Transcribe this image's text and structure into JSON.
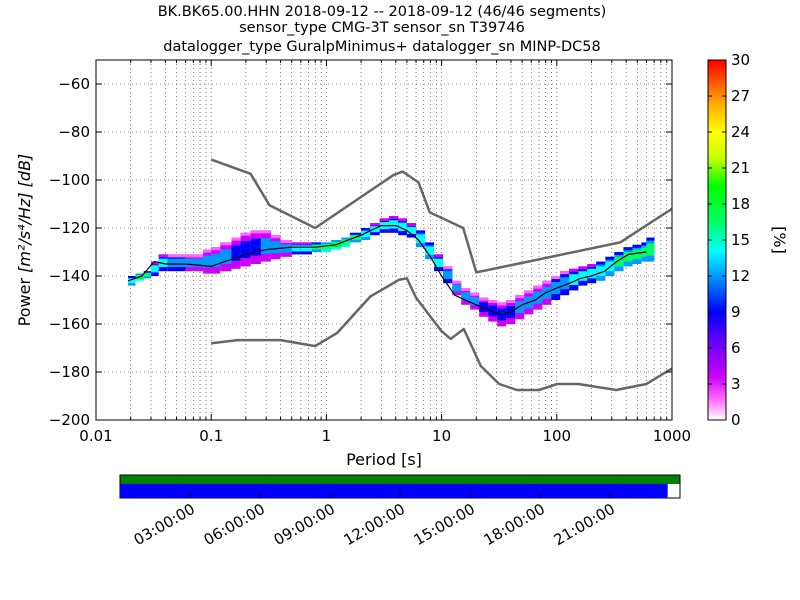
{
  "chart_data": {
    "type": "heatmap",
    "title_lines": [
      "BK.BK65.00.HHN   2018-09-12 -- 2018-09-12  (46/46 segments)",
      "sensor_type CMG-3T sensor_sn T39746",
      "datalogger_type GuralpMinimus+ datalogger_sn MINP-DC58"
    ],
    "xlabel": "Period [s]",
    "ylabel": "Power",
    "ylabel_unit": "[m²/s⁴/Hz] [dB]",
    "x_scale": "log",
    "xlim": [
      0.01,
      1000
    ],
    "ylim": [
      -200,
      -50
    ],
    "x_ticks": [
      {
        "value": 0.01,
        "label": "0.01"
      },
      {
        "value": 0.1,
        "label": "0.1"
      },
      {
        "value": 1,
        "label": "1"
      },
      {
        "value": 10,
        "label": "10"
      },
      {
        "value": 100,
        "label": "100"
      },
      {
        "value": 1000,
        "label": "1000"
      }
    ],
    "y_ticks": [
      {
        "value": -60,
        "label": "−60"
      },
      {
        "value": -80,
        "label": "−80"
      },
      {
        "value": -100,
        "label": "−100"
      },
      {
        "value": -120,
        "label": "−120"
      },
      {
        "value": -140,
        "label": "−140"
      },
      {
        "value": -160,
        "label": "−160"
      },
      {
        "value": -180,
        "label": "−180"
      },
      {
        "value": -200,
        "label": "−200"
      }
    ],
    "grid": "dotted",
    "colorbar": {
      "label": "[%]",
      "range": [
        0,
        30
      ],
      "ticks": [
        {
          "value": 0,
          "label": "0"
        },
        {
          "value": 3,
          "label": "3"
        },
        {
          "value": 6,
          "label": "6"
        },
        {
          "value": 9,
          "label": "9"
        },
        {
          "value": 12,
          "label": "12"
        },
        {
          "value": 15,
          "label": "15"
        },
        {
          "value": 18,
          "label": "18"
        },
        {
          "value": 21,
          "label": "21"
        },
        {
          "value": 24,
          "label": "24"
        },
        {
          "value": 27,
          "label": "27"
        },
        {
          "value": 30,
          "label": "30"
        }
      ]
    },
    "series": [
      {
        "role": "noise-model-high",
        "x": [
          0.1,
          0.22,
          0.32,
          0.8,
          3.8,
          4.6,
          6.3,
          7.9,
          15.4,
          20,
          354.8,
          1000
        ],
        "y": [
          -91.5,
          -97.4,
          -110.5,
          -120,
          -98,
          -96.5,
          -101,
          -113.5,
          -120,
          -138.5,
          -126,
          -112
        ]
      },
      {
        "role": "noise-model-low",
        "x": [
          0.1,
          0.17,
          0.4,
          0.8,
          1.24,
          2.4,
          4.3,
          5,
          6,
          10,
          12,
          15.6,
          21.9,
          31.6,
          45,
          70,
          101,
          154,
          328,
          600,
          1000
        ],
        "y": [
          -168,
          -166.7,
          -166.7,
          -169.2,
          -163.7,
          -148.6,
          -141.5,
          -141,
          -149,
          -163,
          -166.2,
          -162.1,
          -177.5,
          -185,
          -187.5,
          -187.5,
          -185,
          -185,
          -187.5,
          -185,
          -178.5
        ]
      },
      {
        "role": "mode",
        "x": [
          0.019,
          0.025,
          0.032,
          0.04,
          0.06,
          0.1,
          0.15,
          0.2,
          0.3,
          0.5,
          0.8,
          1.2,
          2,
          3,
          4,
          5,
          6.3,
          8,
          10,
          13,
          16,
          20,
          25,
          32,
          40,
          50,
          65,
          80,
          100,
          130,
          160,
          200,
          260,
          330,
          420,
          600
        ],
        "y": [
          -142,
          -140,
          -134,
          -135,
          -135,
          -136,
          -133,
          -131,
          -129,
          -128,
          -128,
          -127,
          -123,
          -119,
          -119,
          -121,
          -125,
          -132,
          -140,
          -148,
          -150,
          -152,
          -154,
          -156,
          -155,
          -152,
          -150,
          -147,
          -145,
          -143,
          -141,
          -140,
          -138,
          -134,
          -131,
          -130
        ]
      }
    ],
    "density_cells": [
      {
        "x": 0.019,
        "ylo": -144,
        "yhi": -140,
        "pct": 14
      },
      {
        "x": 0.022,
        "ylo": -142,
        "yhi": -139,
        "pct": 18
      },
      {
        "x": 0.026,
        "ylo": -141,
        "yhi": -138,
        "pct": 16
      },
      {
        "x": 0.03,
        "ylo": -140,
        "yhi": -134,
        "pct": 13
      },
      {
        "x": 0.035,
        "ylo": -138,
        "yhi": -131,
        "pct": 12
      },
      {
        "x": 0.042,
        "ylo": -138,
        "yhi": -131,
        "pct": 11
      },
      {
        "x": 0.05,
        "ylo": -138,
        "yhi": -131,
        "pct": 11
      },
      {
        "x": 0.06,
        "ylo": -138,
        "yhi": -131,
        "pct": 10
      },
      {
        "x": 0.07,
        "ylo": -138,
        "yhi": -131,
        "pct": 10
      },
      {
        "x": 0.085,
        "ylo": -139,
        "yhi": -129,
        "pct": 10
      },
      {
        "x": 0.1,
        "ylo": -139,
        "yhi": -128,
        "pct": 9
      },
      {
        "x": 0.12,
        "ylo": -138,
        "yhi": -126,
        "pct": 9
      },
      {
        "x": 0.15,
        "ylo": -137,
        "yhi": -124,
        "pct": 8
      },
      {
        "x": 0.18,
        "ylo": -136,
        "yhi": -122,
        "pct": 8
      },
      {
        "x": 0.22,
        "ylo": -135,
        "yhi": -121,
        "pct": 8
      },
      {
        "x": 0.27,
        "ylo": -134,
        "yhi": -121,
        "pct": 9
      },
      {
        "x": 0.33,
        "ylo": -133,
        "yhi": -123,
        "pct": 9
      },
      {
        "x": 0.4,
        "ylo": -132,
        "yhi": -125,
        "pct": 10
      },
      {
        "x": 0.5,
        "ylo": -131,
        "yhi": -126,
        "pct": 12
      },
      {
        "x": 0.6,
        "ylo": -131,
        "yhi": -126,
        "pct": 13
      },
      {
        "x": 0.75,
        "ylo": -130,
        "yhi": -126,
        "pct": 15
      },
      {
        "x": 0.9,
        "ylo": -130,
        "yhi": -126,
        "pct": 17
      },
      {
        "x": 1.1,
        "ylo": -129,
        "yhi": -125,
        "pct": 18
      },
      {
        "x": 1.35,
        "ylo": -128,
        "yhi": -124,
        "pct": 17
      },
      {
        "x": 1.6,
        "ylo": -126,
        "yhi": -122,
        "pct": 16
      },
      {
        "x": 2,
        "ylo": -125,
        "yhi": -120,
        "pct": 14
      },
      {
        "x": 2.4,
        "ylo": -123,
        "yhi": -118,
        "pct": 13
      },
      {
        "x": 2.9,
        "ylo": -122,
        "yhi": -116,
        "pct": 13
      },
      {
        "x": 3.5,
        "ylo": -122,
        "yhi": -115,
        "pct": 12
      },
      {
        "x": 4.2,
        "ylo": -123,
        "yhi": -116,
        "pct": 12
      },
      {
        "x": 5,
        "ylo": -124,
        "yhi": -118,
        "pct": 13
      },
      {
        "x": 6,
        "ylo": -128,
        "yhi": -121,
        "pct": 14
      },
      {
        "x": 7.2,
        "ylo": -133,
        "yhi": -126,
        "pct": 14
      },
      {
        "x": 8.6,
        "ylo": -138,
        "yhi": -131,
        "pct": 13
      },
      {
        "x": 10.3,
        "ylo": -143,
        "yhi": -136,
        "pct": 11
      },
      {
        "x": 12.4,
        "ylo": -148,
        "yhi": -142,
        "pct": 10
      },
      {
        "x": 14.8,
        "ylo": -152,
        "yhi": -145,
        "pct": 9
      },
      {
        "x": 17.7,
        "ylo": -154,
        "yhi": -147,
        "pct": 9
      },
      {
        "x": 21.2,
        "ylo": -157,
        "yhi": -149,
        "pct": 8
      },
      {
        "x": 25.4,
        "ylo": -159,
        "yhi": -150,
        "pct": 8
      },
      {
        "x": 30.4,
        "ylo": -161,
        "yhi": -151,
        "pct": 8
      },
      {
        "x": 36.4,
        "ylo": -160,
        "yhi": -150,
        "pct": 8
      },
      {
        "x": 43.6,
        "ylo": -158,
        "yhi": -148,
        "pct": 9
      },
      {
        "x": 52.2,
        "ylo": -156,
        "yhi": -146,
        "pct": 9
      },
      {
        "x": 62.5,
        "ylo": -154,
        "yhi": -144,
        "pct": 10
      },
      {
        "x": 74.9,
        "ylo": -152,
        "yhi": -142,
        "pct": 10
      },
      {
        "x": 89.7,
        "ylo": -150,
        "yhi": -140,
        "pct": 11
      },
      {
        "x": 107,
        "ylo": -148,
        "yhi": -138,
        "pct": 11
      },
      {
        "x": 128,
        "ylo": -146,
        "yhi": -137,
        "pct": 12
      },
      {
        "x": 154,
        "ylo": -144,
        "yhi": -136,
        "pct": 13
      },
      {
        "x": 184,
        "ylo": -143,
        "yhi": -135,
        "pct": 13
      },
      {
        "x": 220,
        "ylo": -142,
        "yhi": -134,
        "pct": 14
      },
      {
        "x": 264,
        "ylo": -140,
        "yhi": -132,
        "pct": 14
      },
      {
        "x": 316,
        "ylo": -138,
        "yhi": -130,
        "pct": 15
      },
      {
        "x": 379,
        "ylo": -136,
        "yhi": -128,
        "pct": 15
      },
      {
        "x": 454,
        "ylo": -135,
        "yhi": -127,
        "pct": 15
      },
      {
        "x": 543,
        "ylo": -134,
        "yhi": -126,
        "pct": 15
      },
      {
        "x": 600,
        "ylo": -134,
        "yhi": -124,
        "pct": 15
      }
    ],
    "timeline": {
      "tick_labels": [
        "03:00:00",
        "06:00:00",
        "09:00:00",
        "12:00:00",
        "15:00:00",
        "18:00:00",
        "21:00:00"
      ],
      "tick_hours": [
        3,
        6,
        9,
        12,
        15,
        18,
        21
      ],
      "range_hours": [
        0,
        24
      ],
      "coverage_fraction": 0.978,
      "data_color": "#0000ff",
      "segment_color": "#008000"
    }
  }
}
